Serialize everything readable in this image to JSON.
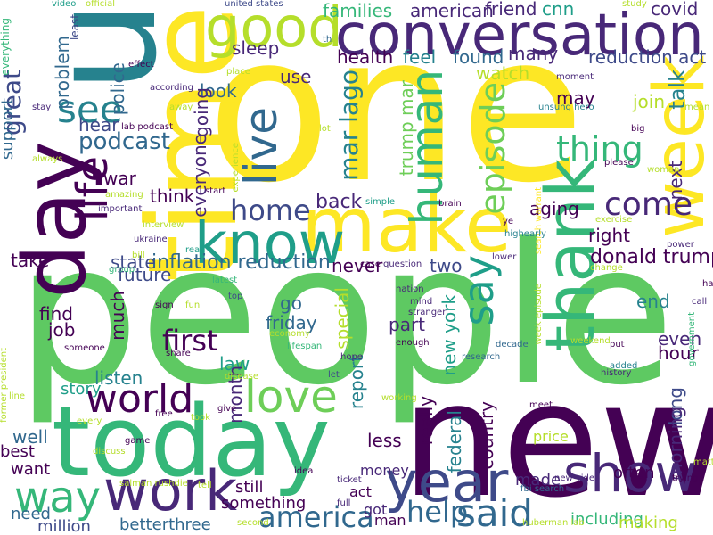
{
  "palette": {
    "dark_purple": "#440154",
    "purple": "#482878",
    "indigo": "#3e4a89",
    "blue": "#31688e",
    "teal": "#26828e",
    "green_teal": "#1f9e89",
    "green": "#35b779",
    "light_green": "#6ece58",
    "lime": "#b5de2b",
    "yellow": "#fde725"
  },
  "words": [
    {
      "text": "one",
      "color": "#fde725",
      "orientation": "horizontal"
    },
    {
      "text": "people",
      "color": "#5ec962",
      "orientation": "horizontal"
    },
    {
      "text": "new",
      "color": "#440154",
      "orientation": "horizontal"
    },
    {
      "text": "u",
      "color": "#26828e",
      "orientation": "vertical"
    },
    {
      "text": "time",
      "color": "#fde725",
      "orientation": "vertical"
    },
    {
      "text": "today",
      "color": "#35b779",
      "orientation": "horizontal"
    },
    {
      "text": "conversation",
      "color": "#482878",
      "orientation": "horizontal"
    },
    {
      "text": "day",
      "color": "#440154",
      "orientation": "vertical"
    },
    {
      "text": "make",
      "color": "#fde725",
      "orientation": "horizontal"
    },
    {
      "text": "know",
      "color": "#1f9e89",
      "orientation": "horizontal"
    },
    {
      "text": "week",
      "color": "#fde725",
      "orientation": "vertical"
    },
    {
      "text": "year",
      "color": "#3e4a89",
      "orientation": "horizontal"
    },
    {
      "text": "good",
      "color": "#b5de2b",
      "orientation": "horizontal"
    },
    {
      "text": "thank",
      "color": "#35b779",
      "orientation": "vertical"
    },
    {
      "text": "show",
      "color": "#482878",
      "orientation": "horizontal"
    },
    {
      "text": "work",
      "color": "#482878",
      "orientation": "horizontal"
    },
    {
      "text": "way",
      "color": "#35b779",
      "orientation": "horizontal"
    },
    {
      "text": "life",
      "color": "#440154",
      "orientation": "vertical"
    },
    {
      "text": "love",
      "color": "#6ece58",
      "orientation": "horizontal"
    },
    {
      "text": "world",
      "color": "#440154",
      "orientation": "horizontal"
    },
    {
      "text": "live",
      "color": "#31688e",
      "orientation": "vertical"
    },
    {
      "text": "human",
      "color": "#35b779",
      "orientation": "vertical"
    },
    {
      "text": "say",
      "color": "#1f9e89",
      "orientation": "vertical"
    },
    {
      "text": "said",
      "color": "#31688e",
      "orientation": "horizontal"
    },
    {
      "text": "see",
      "color": "#26828e",
      "orientation": "horizontal"
    },
    {
      "text": "america",
      "color": "#31688e",
      "orientation": "horizontal"
    },
    {
      "text": "thing",
      "color": "#35b779",
      "orientation": "horizontal"
    },
    {
      "text": "episode",
      "color": "#6ece58",
      "orientation": "vertical"
    },
    {
      "text": "home",
      "color": "#3e4a89",
      "orientation": "horizontal"
    },
    {
      "text": "podcast",
      "color": "#31688e",
      "orientation": "horizontal"
    },
    {
      "text": "help",
      "color": "#31688e",
      "orientation": "horizontal"
    },
    {
      "text": "come",
      "color": "#482878",
      "orientation": "horizontal"
    },
    {
      "text": "first",
      "color": "#440154",
      "orientation": "horizontal"
    },
    {
      "text": "great",
      "color": "#3e4a89",
      "orientation": "vertical"
    },
    {
      "text": "mar lago",
      "color": "#26828e",
      "orientation": "vertical"
    },
    {
      "text": "back",
      "color": "#482878",
      "orientation": "horizontal"
    },
    {
      "text": "donald trump",
      "color": "#440154",
      "orientation": "horizontal"
    },
    {
      "text": "inflation reduction",
      "color": "#31688e",
      "orientation": "horizontal"
    },
    {
      "text": "covid",
      "color": "#482878",
      "orientation": "horizontal"
    },
    {
      "text": "reduction act",
      "color": "#3e4a89",
      "orientation": "horizontal"
    },
    {
      "text": "talk",
      "color": "#26828e",
      "orientation": "vertical"
    },
    {
      "text": "join",
      "color": "#b5de2b",
      "orientation": "horizontal"
    },
    {
      "text": "families",
      "color": "#35b779",
      "orientation": "horizontal"
    },
    {
      "text": "american",
      "color": "#482878",
      "orientation": "horizontal"
    },
    {
      "text": "friend",
      "color": "#482878",
      "orientation": "horizontal"
    },
    {
      "text": "cnn",
      "color": "#1f9e89",
      "orientation": "horizontal"
    },
    {
      "text": "health",
      "color": "#440154",
      "orientation": "horizontal"
    },
    {
      "text": "feel",
      "color": "#26828e",
      "orientation": "horizontal"
    },
    {
      "text": "found",
      "color": "#31688e",
      "orientation": "horizontal"
    },
    {
      "text": "many",
      "color": "#482878",
      "orientation": "horizontal"
    },
    {
      "text": "watch",
      "color": "#b5de2b",
      "orientation": "horizontal"
    },
    {
      "text": "sleep",
      "color": "#482878",
      "orientation": "horizontal"
    },
    {
      "text": "use",
      "color": "#482878",
      "orientation": "horizontal"
    },
    {
      "text": "look",
      "color": "#31688e",
      "orientation": "horizontal"
    },
    {
      "text": "hear",
      "color": "#3e4a89",
      "orientation": "horizontal"
    },
    {
      "text": "police",
      "color": "#31688e",
      "orientation": "vertical"
    },
    {
      "text": "problem",
      "color": "#31688e",
      "orientation": "vertical"
    },
    {
      "text": "going",
      "color": "#482878",
      "orientation": "vertical"
    },
    {
      "text": "everyone",
      "color": "#482878",
      "orientation": "vertical"
    },
    {
      "text": "war",
      "color": "#440154",
      "orientation": "horizontal"
    },
    {
      "text": "think",
      "color": "#440154",
      "orientation": "horizontal"
    },
    {
      "text": "support",
      "color": "#31688e",
      "orientation": "vertical"
    },
    {
      "text": "take",
      "color": "#440154",
      "orientation": "horizontal"
    },
    {
      "text": "state",
      "color": "#3e4a89",
      "orientation": "horizontal"
    },
    {
      "text": "future",
      "color": "#3e4a89",
      "orientation": "horizontal"
    },
    {
      "text": "never",
      "color": "#440154",
      "orientation": "horizontal"
    },
    {
      "text": "two",
      "color": "#3e4a89",
      "orientation": "horizontal"
    },
    {
      "text": "aging",
      "color": "#440154",
      "orientation": "horizontal"
    },
    {
      "text": "right",
      "color": "#440154",
      "orientation": "horizontal"
    },
    {
      "text": "may",
      "color": "#440154",
      "orientation": "horizontal"
    },
    {
      "text": "next",
      "color": "#482878",
      "orientation": "vertical"
    },
    {
      "text": "trump mar",
      "color": "#6ece58",
      "orientation": "vertical"
    },
    {
      "text": "go",
      "color": "#31688e",
      "orientation": "horizontal"
    },
    {
      "text": "friday",
      "color": "#31688e",
      "orientation": "horizontal"
    },
    {
      "text": "end",
      "color": "#26828e",
      "orientation": "horizontal"
    },
    {
      "text": "much",
      "color": "#440154",
      "orientation": "vertical"
    },
    {
      "text": "find",
      "color": "#440154",
      "orientation": "horizontal"
    },
    {
      "text": "job",
      "color": "#440154",
      "orientation": "horizontal"
    },
    {
      "text": "special",
      "color": "#b5de2b",
      "orientation": "vertical"
    },
    {
      "text": "part",
      "color": "#482878",
      "orientation": "horizontal"
    },
    {
      "text": "new york",
      "color": "#1f9e89",
      "orientation": "vertical"
    },
    {
      "text": "even",
      "color": "#482878",
      "orientation": "horizontal"
    },
    {
      "text": "hour",
      "color": "#440154",
      "orientation": "horizontal"
    },
    {
      "text": "law",
      "color": "#1f9e89",
      "orientation": "horizontal"
    },
    {
      "text": "listen",
      "color": "#26828e",
      "orientation": "horizontal"
    },
    {
      "text": "story",
      "color": "#1f9e89",
      "orientation": "horizontal"
    },
    {
      "text": "month",
      "color": "#482878",
      "orientation": "vertical"
    },
    {
      "text": "report",
      "color": "#26828e",
      "orientation": "vertical"
    },
    {
      "text": "less",
      "color": "#440154",
      "orientation": "horizontal"
    },
    {
      "text": "really",
      "color": "#440154",
      "orientation": "vertical"
    },
    {
      "text": "federal",
      "color": "#26828e",
      "orientation": "vertical"
    },
    {
      "text": "country",
      "color": "#440154",
      "orientation": "vertical"
    },
    {
      "text": "long",
      "color": "#3e4a89",
      "orientation": "vertical"
    },
    {
      "text": "morning",
      "color": "#482878",
      "orientation": "vertical"
    },
    {
      "text": "well",
      "color": "#31688e",
      "orientation": "horizontal"
    },
    {
      "text": "best",
      "color": "#440154",
      "orientation": "horizontal"
    },
    {
      "text": "want",
      "color": "#440154",
      "orientation": "horizontal"
    },
    {
      "text": "need",
      "color": "#31688e",
      "orientation": "horizontal"
    },
    {
      "text": "million",
      "color": "#3e4a89",
      "orientation": "horizontal"
    },
    {
      "text": "still",
      "color": "#440154",
      "orientation": "horizontal"
    },
    {
      "text": "something",
      "color": "#440154",
      "orientation": "horizontal"
    },
    {
      "text": "betterthree",
      "color": "#31688e",
      "orientation": "horizontal"
    },
    {
      "text": "money",
      "color": "#482878",
      "orientation": "horizontal"
    },
    {
      "text": "act",
      "color": "#440154",
      "orientation": "horizontal"
    },
    {
      "text": "got",
      "color": "#482878",
      "orientation": "horizontal"
    },
    {
      "text": "man",
      "color": "#440154",
      "orientation": "horizontal"
    },
    {
      "text": "price",
      "color": "#b5de2b",
      "orientation": "horizontal"
    },
    {
      "text": "made",
      "color": "#482878",
      "orientation": "horizontal"
    },
    {
      "text": "often",
      "color": "#440154",
      "orientation": "horizontal"
    },
    {
      "text": "including",
      "color": "#35b779",
      "orientation": "horizontal"
    },
    {
      "text": "making",
      "color": "#b5de2b",
      "orientation": "horizontal"
    },
    {
      "text": "video",
      "color": "#1f9e89",
      "orientation": "horizontal"
    },
    {
      "text": "official",
      "color": "#b5de2b",
      "orientation": "horizontal"
    },
    {
      "text": "united states",
      "color": "#3e4a89",
      "orientation": "horizontal"
    },
    {
      "text": "th",
      "color": "#31688e",
      "orientation": "horizontal"
    },
    {
      "text": "study",
      "color": "#b5de2b",
      "orientation": "horizontal"
    },
    {
      "text": "everything",
      "color": "#35b779",
      "orientation": "vertical"
    },
    {
      "text": "least",
      "color": "#3e4a89",
      "orientation": "vertical"
    },
    {
      "text": "effect",
      "color": "#440154",
      "orientation": "horizontal"
    },
    {
      "text": "place",
      "color": "#b5de2b",
      "orientation": "horizontal"
    },
    {
      "text": "moment",
      "color": "#482878",
      "orientation": "horizontal"
    },
    {
      "text": "according",
      "color": "#482878",
      "orientation": "horizontal"
    },
    {
      "text": "stay",
      "color": "#482878",
      "orientation": "horizontal"
    },
    {
      "text": "away",
      "color": "#b5de2b",
      "orientation": "horizontal"
    },
    {
      "text": "lot",
      "color": "#b5de2b",
      "orientation": "horizontal"
    },
    {
      "text": "unsung hero",
      "color": "#26828e",
      "orientation": "horizontal"
    },
    {
      "text": "mean",
      "color": "#b5de2b",
      "orientation": "horizontal"
    },
    {
      "text": "big",
      "color": "#440154",
      "orientation": "horizontal"
    },
    {
      "text": "always",
      "color": "#b5de2b",
      "orientation": "horizontal"
    },
    {
      "text": "lab podcast",
      "color": "#440154",
      "orientation": "horizontal"
    },
    {
      "text": "experience",
      "color": "#b5de2b",
      "orientation": "vertical"
    },
    {
      "text": "please",
      "color": "#440154",
      "orientation": "horizontal"
    },
    {
      "text": "search warrant",
      "color": "#fde725",
      "orientation": "vertical"
    },
    {
      "text": "amazing",
      "color": "#b5de2b",
      "orientation": "horizontal"
    },
    {
      "text": "important",
      "color": "#482878",
      "orientation": "horizontal"
    },
    {
      "text": "start",
      "color": "#440154",
      "orientation": "horizontal"
    },
    {
      "text": "simple",
      "color": "#1f9e89",
      "orientation": "horizontal"
    },
    {
      "text": "brain",
      "color": "#440154",
      "orientation": "horizontal"
    },
    {
      "text": "woman",
      "color": "#b5de2b",
      "orientation": "horizontal"
    },
    {
      "text": "ukraine",
      "color": "#482878",
      "orientation": "horizontal"
    },
    {
      "text": "ye",
      "color": "#440154",
      "orientation": "horizontal"
    },
    {
      "text": "highearly",
      "color": "#26828e",
      "orientation": "horizontal"
    },
    {
      "text": "exercise",
      "color": "#b5de2b",
      "orientation": "horizontal"
    },
    {
      "text": "interview",
      "color": "#b5de2b",
      "orientation": "horizontal"
    },
    {
      "text": "read",
      "color": "#1f9e89",
      "orientation": "horizontal"
    },
    {
      "text": "power",
      "color": "#482878",
      "orientation": "horizontal"
    },
    {
      "text": "question",
      "color": "#482878",
      "orientation": "horizontal"
    },
    {
      "text": "case",
      "color": "#440154",
      "orientation": "horizontal"
    },
    {
      "text": "lower",
      "color": "#482878",
      "orientation": "horizontal"
    },
    {
      "text": "change",
      "color": "#b5de2b",
      "orientation": "horizontal"
    },
    {
      "text": "group",
      "color": "#35b779",
      "orientation": "horizontal"
    },
    {
      "text": "bill",
      "color": "#b5de2b",
      "orientation": "horizontal"
    },
    {
      "text": "latest",
      "color": "#35b779",
      "orientation": "horizontal"
    },
    {
      "text": "top",
      "color": "#3e4a89",
      "orientation": "horizontal"
    },
    {
      "text": "nation",
      "color": "#482878",
      "orientation": "horizontal"
    },
    {
      "text": "week episode",
      "color": "#b5de2b",
      "orientation": "vertical"
    },
    {
      "text": "call",
      "color": "#482878",
      "orientation": "horizontal"
    },
    {
      "text": "hard",
      "color": "#440154",
      "orientation": "horizontal"
    },
    {
      "text": "government",
      "color": "#35b779",
      "orientation": "vertical"
    },
    {
      "text": "sign",
      "color": "#440154",
      "orientation": "horizontal"
    },
    {
      "text": "fun",
      "color": "#b5de2b",
      "orientation": "horizontal"
    },
    {
      "text": "mind",
      "color": "#482878",
      "orientation": "horizontal"
    },
    {
      "text": "stranger",
      "color": "#482878",
      "orientation": "horizontal"
    },
    {
      "text": "economy",
      "color": "#b5de2b",
      "orientation": "horizontal"
    },
    {
      "text": "lifespan",
      "color": "#35b779",
      "orientation": "horizontal"
    },
    {
      "text": "enough",
      "color": "#440154",
      "orientation": "horizontal"
    },
    {
      "text": "decade",
      "color": "#31688e",
      "orientation": "horizontal"
    },
    {
      "text": "put",
      "color": "#440154",
      "orientation": "horizontal"
    },
    {
      "text": "weekend",
      "color": "#b5de2b",
      "orientation": "horizontal"
    },
    {
      "text": "added",
      "color": "#26828e",
      "orientation": "horizontal"
    },
    {
      "text": "history",
      "color": "#482878",
      "orientation": "horizontal"
    },
    {
      "text": "someone",
      "color": "#440154",
      "orientation": "horizontal"
    },
    {
      "text": "share",
      "color": "#440154",
      "orientation": "horizontal"
    },
    {
      "text": "hope",
      "color": "#482878",
      "orientation": "horizontal"
    },
    {
      "text": "research",
      "color": "#31688e",
      "orientation": "horizontal"
    },
    {
      "text": "former president",
      "color": "#b5de2b",
      "orientation": "vertical"
    },
    {
      "text": "disease",
      "color": "#b5de2b",
      "orientation": "horizontal"
    },
    {
      "text": "let",
      "color": "#3e4a89",
      "orientation": "horizontal"
    },
    {
      "text": "line",
      "color": "#b5de2b",
      "orientation": "horizontal"
    },
    {
      "text": "working",
      "color": "#b5de2b",
      "orientation": "horizontal"
    },
    {
      "text": "meet",
      "color": "#440154",
      "orientation": "horizontal"
    },
    {
      "text": "free",
      "color": "#440154",
      "orientation": "horizontal"
    },
    {
      "text": "give",
      "color": "#440154",
      "orientation": "horizontal"
    },
    {
      "text": "took",
      "color": "#b5de2b",
      "orientation": "horizontal"
    },
    {
      "text": "every",
      "color": "#b5de2b",
      "orientation": "horizontal"
    },
    {
      "text": "matter",
      "color": "#b5de2b",
      "orientation": "horizontal"
    },
    {
      "text": "game",
      "color": "#440154",
      "orientation": "horizontal"
    },
    {
      "text": "discuss",
      "color": "#b5de2b",
      "orientation": "horizontal"
    },
    {
      "text": "idea",
      "color": "#440154",
      "orientation": "horizontal"
    },
    {
      "text": "new video",
      "color": "#482878",
      "orientation": "horizontal"
    },
    {
      "text": "trying",
      "color": "#440154",
      "orientation": "horizontal"
    },
    {
      "text": "salman rushdie",
      "color": "#b5de2b",
      "orientation": "horizontal"
    },
    {
      "text": "tell",
      "color": "#b5de2b",
      "orientation": "horizontal"
    },
    {
      "text": "ticket",
      "color": "#482878",
      "orientation": "horizontal"
    },
    {
      "text": "fbi search",
      "color": "#31688e",
      "orientation": "horizontal"
    },
    {
      "text": "full",
      "color": "#482878",
      "orientation": "horizontal"
    },
    {
      "text": "second",
      "color": "#b5de2b",
      "orientation": "horizontal"
    },
    {
      "text": "huberman lab",
      "color": "#b5de2b",
      "orientation": "horizontal"
    }
  ]
}
